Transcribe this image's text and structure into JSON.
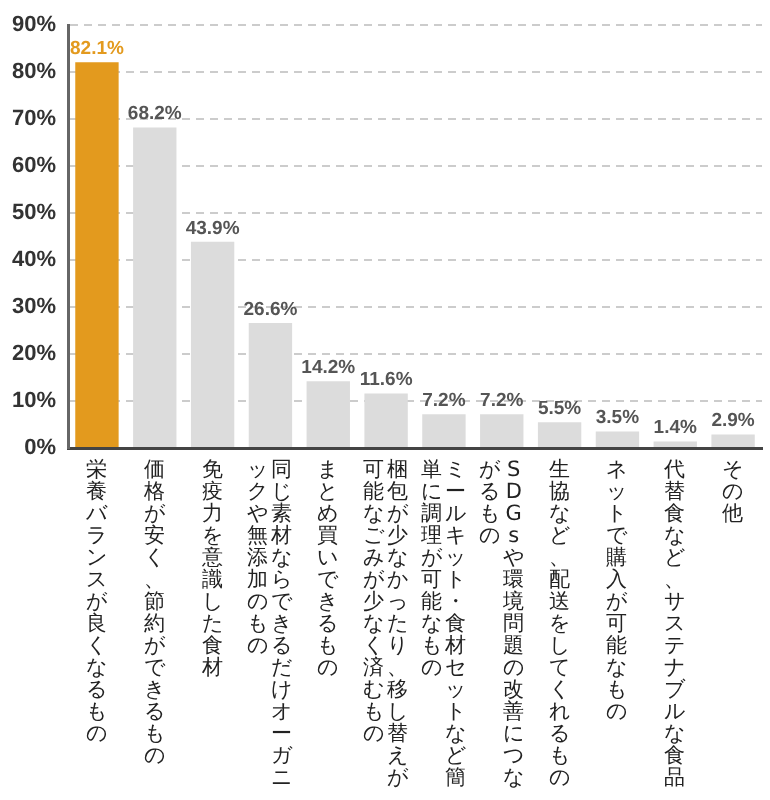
{
  "chart_data": {
    "type": "bar",
    "categories": [
      "栄養バランスが良くなるもの",
      "価格が安く、節約ができるもの",
      "免疫力を意識した食材",
      "同じ素材ならできるだけオーガニックや無添加のもの",
      "まとめ買いできるもの",
      "梱包が少なかったり、移し替えが可能なごみが少なく済むもの",
      "ミールキット・食材セットなど簡単に調理が可能なもの",
      "SDGsや環境問題の改善につながるもの",
      "生協など、配送をしてくれるもの",
      "ネットで購入が可能なもの",
      "代替食など、サステナブルな食品",
      "その他"
    ],
    "values": [
      82.1,
      68.2,
      43.9,
      26.6,
      14.2,
      11.6,
      7.2,
      7.2,
      5.5,
      3.5,
      1.4,
      2.9
    ],
    "colors": [
      "#e39a1e",
      "#dcdcdc",
      "#dcdcdc",
      "#dcdcdc",
      "#dcdcdc",
      "#dcdcdc",
      "#dcdcdc",
      "#dcdcdc",
      "#dcdcdc",
      "#dcdcdc",
      "#dcdcdc",
      "#dcdcdc"
    ],
    "value_labels": [
      "82.1%",
      "68.2%",
      "43.9%",
      "26.6%",
      "14.2%",
      "11.6%",
      "7.2%",
      "7.2%",
      "5.5%",
      "3.5%",
      "1.4%",
      "2.9%"
    ],
    "ylim": [
      0,
      90
    ],
    "yticks": [
      {
        "value": 0,
        "label": "0%"
      },
      {
        "value": 10,
        "label": "10%"
      },
      {
        "value": 20,
        "label": "20%"
      },
      {
        "value": 30,
        "label": "30%"
      },
      {
        "value": 40,
        "label": "40%"
      },
      {
        "value": 50,
        "label": "50%"
      },
      {
        "value": 60,
        "label": "60%"
      },
      {
        "value": 70,
        "label": "70%"
      },
      {
        "value": 80,
        "label": "80%"
      },
      {
        "value": 90,
        "label": "90%"
      }
    ],
    "grid": "y"
  }
}
